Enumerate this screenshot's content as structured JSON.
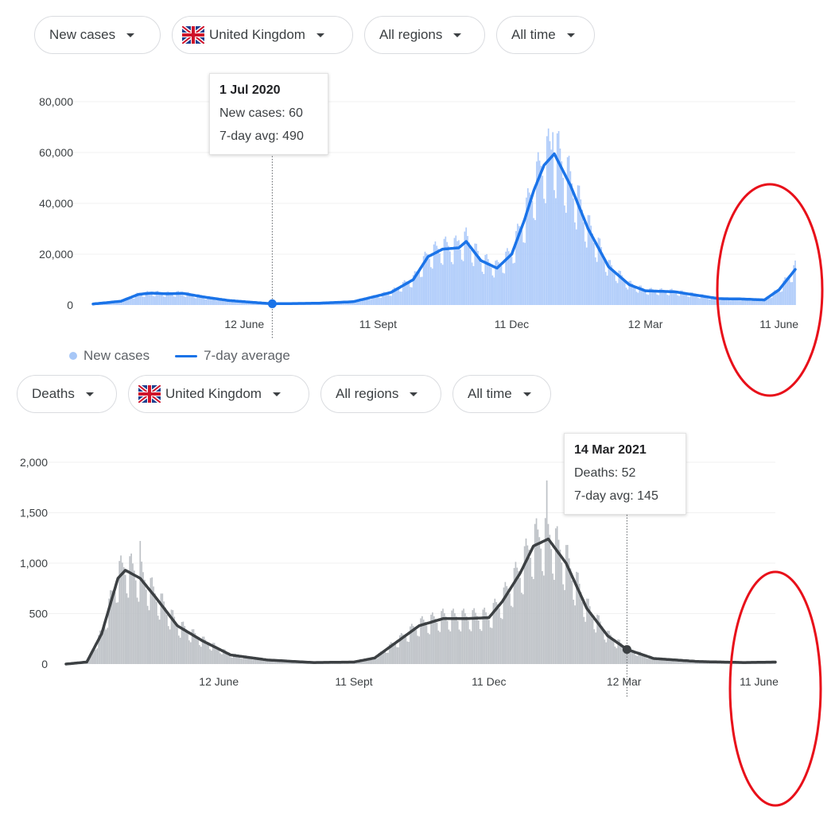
{
  "top": {
    "filters": {
      "metric": "New cases",
      "country": "United Kingdom",
      "regions": "All regions",
      "time": "All time"
    },
    "tooltip": {
      "date": "1 Jul 2020",
      "value_line": "New cases: 60",
      "avg_line": "7-day avg: 490"
    },
    "legend": {
      "bars": "New cases",
      "line": "7-day average"
    }
  },
  "bottom": {
    "filters": {
      "metric": "Deaths",
      "country": "United Kingdom",
      "regions": "All regions",
      "time": "All time"
    },
    "tooltip": {
      "date": "14 Mar 2021",
      "value_line": "Deaths: 52",
      "avg_line": "7-day avg: 145"
    }
  },
  "colors": {
    "cases_bar": "#aecbfa",
    "cases_line": "#1a73e8",
    "deaths_bar": "#bdc1c6",
    "deaths_line": "#3c4043",
    "annotation": "#e8101a"
  },
  "chart_data": [
    {
      "type": "bar",
      "title": "",
      "xlabel": "",
      "ylabel": "",
      "ylim": [
        0,
        80000
      ],
      "x_range": [
        "2020-03-01",
        "2021-06-22"
      ],
      "yticks": [
        "0",
        "20,000",
        "40,000",
        "60,000",
        "80,000"
      ],
      "xticks": [
        "12 June",
        "11 Sept",
        "11 Dec",
        "12 Mar",
        "11 June"
      ],
      "series": [
        {
          "name": "7-day average",
          "type": "line",
          "x": [
            "2020-03-01",
            "2020-03-20",
            "2020-04-01",
            "2020-04-10",
            "2020-04-20",
            "2020-05-01",
            "2020-05-15",
            "2020-06-01",
            "2020-06-12",
            "2020-07-01",
            "2020-08-01",
            "2020-08-25",
            "2020-09-10",
            "2020-09-20",
            "2020-10-05",
            "2020-10-15",
            "2020-10-25",
            "2020-11-05",
            "2020-11-10",
            "2020-11-20",
            "2020-12-01",
            "2020-12-11",
            "2020-12-20",
            "2020-12-26",
            "2021-01-02",
            "2021-01-09",
            "2021-01-20",
            "2021-02-01",
            "2021-02-15",
            "2021-03-01",
            "2021-03-12",
            "2021-04-01",
            "2021-05-01",
            "2021-05-15",
            "2021-06-01",
            "2021-06-11",
            "2021-06-22"
          ],
          "values": [
            400,
            1500,
            4200,
            4700,
            4400,
            4600,
            3200,
            1800,
            1300,
            490,
            700,
            1300,
            3500,
            5000,
            10000,
            19000,
            22000,
            22500,
            25000,
            17500,
            14500,
            20000,
            34000,
            45000,
            55000,
            59500,
            47000,
            30000,
            15000,
            8000,
            5600,
            5200,
            2500,
            2400,
            2000,
            6000,
            14000
          ]
        },
        {
          "name": "New cases",
          "type": "bar",
          "peak_values": [
            {
              "x": "2020-11-05",
              "y": 25500
            },
            {
              "x": "2021-01-08",
              "y": 68000
            },
            {
              "x": "2021-06-22",
              "y": 17500
            }
          ]
        }
      ],
      "highlight": {
        "x": "2020-07-01",
        "value": 60,
        "avg": 490
      }
    },
    {
      "type": "bar",
      "title": "",
      "xlabel": "",
      "ylabel": "",
      "ylim": [
        0,
        2000
      ],
      "x_range": [
        "2020-03-01",
        "2021-06-22"
      ],
      "yticks": [
        "0",
        "500",
        "1,000",
        "1,500",
        "2,000"
      ],
      "xticks": [
        "12 June",
        "11 Sept",
        "11 Dec",
        "12 Mar",
        "11 June"
      ],
      "series": [
        {
          "name": "7-day average",
          "type": "line",
          "x": [
            "2020-03-01",
            "2020-03-15",
            "2020-03-25",
            "2020-04-05",
            "2020-04-10",
            "2020-04-20",
            "2020-05-01",
            "2020-05-15",
            "2020-06-01",
            "2020-06-20",
            "2020-07-15",
            "2020-08-15",
            "2020-09-11",
            "2020-09-25",
            "2020-10-10",
            "2020-10-25",
            "2020-11-10",
            "2020-11-25",
            "2020-12-11",
            "2020-12-20",
            "2021-01-01",
            "2021-01-10",
            "2021-01-20",
            "2021-02-01",
            "2021-02-15",
            "2021-03-01",
            "2021-03-14",
            "2021-04-01",
            "2021-05-01",
            "2021-06-01",
            "2021-06-22"
          ],
          "values": [
            0,
            20,
            300,
            850,
            930,
            850,
            650,
            380,
            230,
            90,
            40,
            15,
            20,
            60,
            220,
            380,
            450,
            450,
            460,
            620,
            900,
            1170,
            1240,
            1000,
            550,
            280,
            145,
            55,
            25,
            15,
            20
          ]
        },
        {
          "name": "Deaths",
          "type": "bar",
          "peak_values": [
            {
              "x": "2020-04-20",
              "y": 1220
            },
            {
              "x": "2021-01-19",
              "y": 1820
            }
          ]
        }
      ],
      "highlight": {
        "x": "2021-03-14",
        "value": 52,
        "avg": 145
      }
    }
  ]
}
